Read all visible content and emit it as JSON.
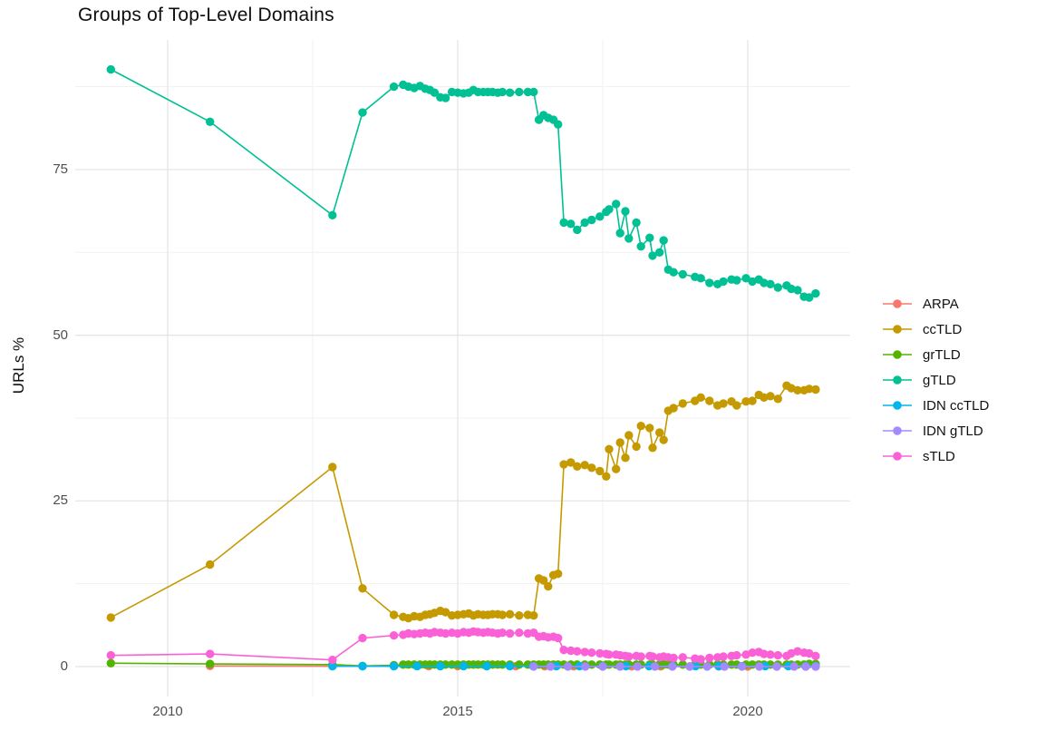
{
  "title": "Groups of Top-Level Domains",
  "axes": {
    "y_label": "URLs %",
    "y_ticks": [
      0,
      25,
      50,
      75
    ],
    "y_minor": [
      12.5,
      37.5,
      62.5,
      87.5
    ],
    "x_ticks": [
      2010,
      2015,
      2020
    ],
    "x_tick_labels": [
      "2010",
      "2015",
      "2020"
    ],
    "x_minor": [
      2012.5,
      2017.5
    ]
  },
  "colors": {
    "background": "#ffffff",
    "grid_major": "#e3e3e3",
    "grid_minor": "#f1f1f1",
    "tick_text": "#4e4e4e",
    "title_text": "#0f0f0f"
  },
  "legend": {
    "position": "right",
    "entries": [
      {
        "label": "ARPA",
        "color": "#F8766D"
      },
      {
        "label": "ccTLD",
        "color": "#C49A00"
      },
      {
        "label": "grTLD",
        "color": "#53B400"
      },
      {
        "label": "gTLD",
        "color": "#00C094"
      },
      {
        "label": "IDN ccTLD",
        "color": "#00B6EB"
      },
      {
        "label": "IDN gTLD",
        "color": "#A58AFF"
      },
      {
        "label": "sTLD",
        "color": "#FB61D7"
      }
    ]
  },
  "chart_data": {
    "type": "line",
    "title": "Groups of Top-Level Domains",
    "xlabel": "",
    "ylabel": "URLs %",
    "xlim": [
      2008.4,
      2021.8
    ],
    "ylim": [
      -4.7,
      94.8
    ],
    "grid": true,
    "legend_position": "right",
    "x": [
      2009.02,
      2010.73,
      2012.84,
      2013.36,
      2013.9,
      2014.06,
      2014.15,
      2014.25,
      2014.35,
      2014.44,
      2014.52,
      2014.6,
      2014.7,
      2014.79,
      2014.9,
      2015.0,
      2015.1,
      2015.19,
      2015.27,
      2015.35,
      2015.44,
      2015.52,
      2015.6,
      2015.69,
      2015.77,
      2015.9,
      2016.06,
      2016.21,
      2016.31,
      2016.4,
      2016.48,
      2016.56,
      2016.65,
      2016.73,
      2016.83,
      2016.95,
      2017.06,
      2017.19,
      2017.31,
      2017.45,
      2017.56,
      2017.61,
      2017.73,
      2017.8,
      2017.89,
      2017.95,
      2018.08,
      2018.16,
      2018.31,
      2018.36,
      2018.48,
      2018.55,
      2018.63,
      2018.72,
      2018.88,
      2019.09,
      2019.19,
      2019.34,
      2019.48,
      2019.58,
      2019.72,
      2019.81,
      2019.97,
      2020.08,
      2020.19,
      2020.28,
      2020.39,
      2020.52,
      2020.67,
      2020.75,
      2020.86,
      2020.97,
      2021.06,
      2021.17
    ],
    "series": [
      {
        "name": "ARPA",
        "color": "#F8766D",
        "x": [
          2010.73,
          2012.84,
          2013.36,
          2013.9,
          2014.5,
          2015.0,
          2015.5,
          2016.0,
          2016.5,
          2017.0,
          2017.5,
          2018.0,
          2018.5,
          2019.0,
          2019.5,
          2020.0,
          2020.5,
          2021.0,
          2021.17
        ],
        "values": [
          0.1,
          0.05,
          0.05,
          0.05,
          0.05,
          0.05,
          0.05,
          0.05,
          0.04,
          0.04,
          0.04,
          0.03,
          0.03,
          0.03,
          0.03,
          0.02,
          0.02,
          0.02,
          0.02
        ]
      },
      {
        "name": "ccTLD",
        "color": "#C49A00",
        "values": [
          7.4,
          15.4,
          30.1,
          11.8,
          7.8,
          7.5,
          7.3,
          7.6,
          7.5,
          7.8,
          7.9,
          8.1,
          8.4,
          8.2,
          7.7,
          7.8,
          7.9,
          8.0,
          7.7,
          7.9,
          7.8,
          7.8,
          7.9,
          7.9,
          7.8,
          7.9,
          7.7,
          7.8,
          7.7,
          13.3,
          13.0,
          12.1,
          13.8,
          14.0,
          30.5,
          30.8,
          30.2,
          30.4,
          30.0,
          29.5,
          28.7,
          32.8,
          29.8,
          33.8,
          31.5,
          34.9,
          33.2,
          36.3,
          36.0,
          33.0,
          35.3,
          34.2,
          38.6,
          39.0,
          39.7,
          40.1,
          40.6,
          40.1,
          39.4,
          39.7,
          40.0,
          39.4,
          40.0,
          40.1,
          41.0,
          40.6,
          40.8,
          40.4,
          42.4,
          42.0,
          41.7,
          41.7,
          41.9,
          41.8
        ]
      },
      {
        "name": "grTLD",
        "color": "#53B400",
        "values": [
          0.5,
          0.4,
          0.3,
          0.1,
          0.2,
          0.3,
          0.3,
          0.3,
          0.3,
          0.3,
          0.3,
          0.3,
          0.3,
          0.3,
          0.3,
          0.3,
          0.3,
          0.3,
          0.3,
          0.3,
          0.3,
          0.3,
          0.3,
          0.3,
          0.3,
          0.3,
          0.3,
          0.3,
          0.3,
          0.3,
          0.3,
          0.3,
          0.3,
          0.3,
          0.3,
          0.3,
          0.3,
          0.3,
          0.3,
          0.3,
          0.3,
          0.3,
          0.3,
          0.3,
          0.3,
          0.3,
          0.3,
          0.3,
          0.3,
          0.3,
          0.3,
          0.3,
          0.3,
          0.3,
          0.3,
          0.3,
          0.3,
          0.3,
          0.3,
          0.3,
          0.3,
          0.3,
          0.3,
          0.3,
          0.3,
          0.3,
          0.3,
          0.3,
          0.3,
          0.3,
          0.3,
          0.3,
          0.4,
          0.4
        ]
      },
      {
        "name": "gTLD",
        "color": "#00C094",
        "values": [
          90.1,
          82.2,
          68.1,
          83.6,
          87.5,
          87.8,
          87.5,
          87.3,
          87.6,
          87.2,
          87.0,
          86.6,
          85.9,
          85.8,
          86.7,
          86.6,
          86.5,
          86.6,
          87.0,
          86.7,
          86.7,
          86.7,
          86.7,
          86.6,
          86.7,
          86.6,
          86.7,
          86.7,
          86.7,
          82.5,
          83.2,
          82.8,
          82.5,
          81.8,
          67.0,
          66.8,
          65.9,
          67.0,
          67.4,
          67.9,
          68.6,
          69.0,
          69.8,
          65.4,
          68.7,
          64.6,
          67.0,
          63.4,
          64.7,
          62.0,
          62.5,
          64.3,
          59.9,
          59.5,
          59.2,
          58.8,
          58.6,
          57.9,
          57.7,
          58.1,
          58.4,
          58.3,
          58.6,
          58.1,
          58.4,
          57.9,
          57.7,
          57.2,
          57.5,
          57.0,
          56.8,
          55.8,
          55.7,
          56.3
        ]
      },
      {
        "name": "IDN ccTLD",
        "color": "#00B6EB",
        "x": [
          2012.84,
          2013.36,
          2013.9,
          2014.3,
          2014.7,
          2015.1,
          2015.5,
          2015.9,
          2016.3,
          2016.7,
          2017.1,
          2017.5,
          2017.9,
          2018.3,
          2018.7,
          2019.1,
          2019.5,
          2019.9,
          2020.3,
          2020.7,
          2021.0,
          2021.17
        ],
        "values": [
          0.05,
          0.05,
          0.05,
          0.05,
          0.05,
          0.05,
          0.05,
          0.05,
          0.05,
          0.05,
          0.05,
          0.05,
          0.05,
          0.05,
          0.05,
          0.05,
          0.05,
          0.05,
          0.05,
          0.05,
          0.05,
          0.05
        ]
      },
      {
        "name": "IDN gTLD",
        "color": "#A58AFF",
        "x": [
          2016.31,
          2016.6,
          2016.9,
          2017.2,
          2017.5,
          2017.8,
          2018.1,
          2018.4,
          2018.7,
          2019.0,
          2019.3,
          2019.6,
          2019.9,
          2020.2,
          2020.5,
          2020.8,
          2021.0,
          2021.17
        ],
        "values": [
          0.02,
          0.02,
          0.02,
          0.02,
          0.02,
          0.02,
          0.02,
          0.02,
          0.02,
          0.02,
          0.02,
          0.02,
          0.02,
          0.02,
          0.02,
          0.02,
          0.02,
          0.02
        ]
      },
      {
        "name": "sTLD",
        "color": "#FB61D7",
        "values": [
          1.7,
          1.9,
          1.0,
          4.3,
          4.7,
          4.8,
          5.0,
          4.9,
          5.0,
          5.1,
          5.0,
          5.2,
          5.1,
          5.0,
          5.1,
          5.0,
          5.2,
          5.1,
          5.3,
          5.2,
          5.1,
          5.2,
          5.1,
          5.0,
          5.1,
          5.0,
          5.1,
          5.0,
          5.1,
          4.5,
          4.6,
          4.4,
          4.5,
          4.3,
          2.5,
          2.4,
          2.3,
          2.2,
          2.1,
          2.0,
          1.9,
          1.8,
          1.8,
          1.7,
          1.6,
          1.5,
          1.6,
          1.5,
          1.6,
          1.5,
          1.4,
          1.5,
          1.4,
          1.3,
          1.4,
          1.2,
          1.1,
          1.3,
          1.4,
          1.5,
          1.6,
          1.7,
          1.8,
          2.1,
          2.2,
          1.9,
          1.8,
          1.7,
          1.6,
          2.0,
          2.3,
          2.1,
          2.0,
          1.6
        ]
      }
    ]
  }
}
